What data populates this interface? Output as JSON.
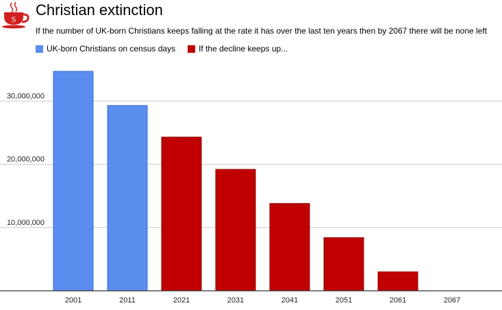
{
  "title": "Christian extinction",
  "subtitle": "If the number of UK-born Christians keeps falling at the rate it has over the last ten years then by 2067 there will be none left",
  "logo": {
    "icon": "teacup-icon",
    "letter": "S",
    "color": "#d11f1f"
  },
  "chart_data": {
    "type": "bar",
    "categories": [
      "2001",
      "2011",
      "2021",
      "2031",
      "2041",
      "2051",
      "2061",
      "2067"
    ],
    "series": [
      {
        "name": "UK-born Christians on census days",
        "color": "#5b8def",
        "values": [
          34700000,
          29300000,
          null,
          null,
          null,
          null,
          null,
          null
        ]
      },
      {
        "name": "If the decline keeps up...",
        "color": "#c00000",
        "values": [
          null,
          null,
          24300000,
          19200000,
          13800000,
          8400000,
          3000000,
          0
        ]
      }
    ],
    "y_ticks": [
      10000000,
      20000000,
      30000000
    ],
    "y_tick_labels": [
      "10,000,000",
      "20,000,000",
      "30,000,000"
    ],
    "ylim": [
      0,
      35000000
    ],
    "grid": true,
    "legend_position": "top-left"
  }
}
